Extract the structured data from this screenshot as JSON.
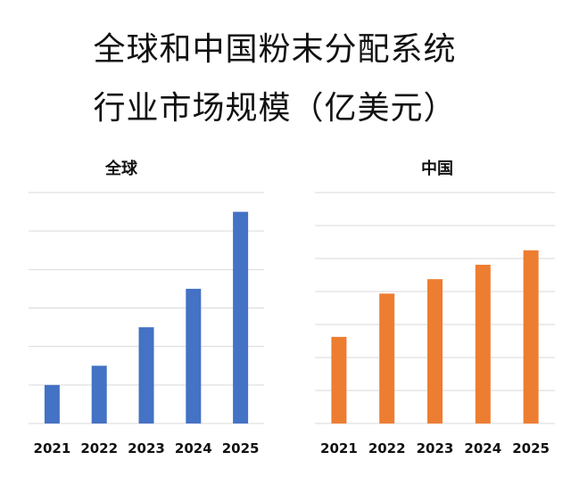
{
  "title_line1": "全球和中国粉末分配系统",
  "title_line2": "行业市场规模（亿美元）",
  "chart_data": [
    {
      "type": "bar",
      "title": "全球",
      "categories": [
        "2021",
        "2022",
        "2023",
        "2024",
        "2025"
      ],
      "values": [
        1.0,
        1.5,
        2.5,
        3.5,
        5.5
      ],
      "ylim": [
        0,
        6
      ],
      "grid": true,
      "color": "#4472C4"
    },
    {
      "type": "bar",
      "title": "中国",
      "categories": [
        "2021",
        "2022",
        "2023",
        "2024",
        "2025"
      ],
      "values": [
        3.0,
        4.5,
        5.0,
        5.5,
        6.0
      ],
      "ylim": [
        0,
        8
      ],
      "grid": true,
      "color": "#ED7D31"
    }
  ]
}
